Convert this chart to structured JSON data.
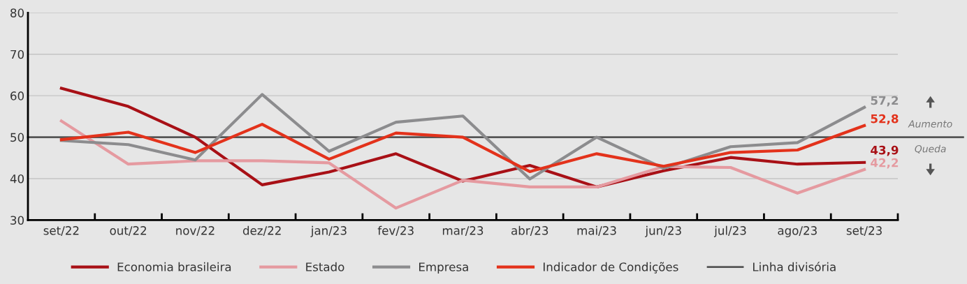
{
  "chart_data": {
    "type": "line",
    "categories": [
      "set/22",
      "out/22",
      "nov/22",
      "dez/22",
      "jan/23",
      "fev/23",
      "mar/23",
      "abr/23",
      "mai/23",
      "jun/23",
      "jul/23",
      "ago/23",
      "set/23"
    ],
    "series": [
      {
        "name": "Economia brasileira",
        "color": "#a81016",
        "values": [
          61.8,
          57.4,
          50.0,
          38.5,
          41.6,
          46.0,
          39.4,
          43.2,
          38.0,
          41.9,
          45.1,
          43.5,
          43.9
        ],
        "value_labels": [
          null,
          null,
          null,
          null,
          null,
          null,
          null,
          null,
          null,
          null,
          null,
          null,
          "43,9"
        ]
      },
      {
        "name": "Estado",
        "color": "#e59aa0",
        "values": [
          53.9,
          43.5,
          44.3,
          44.3,
          43.8,
          32.9,
          39.6,
          38.0,
          38.0,
          42.9,
          42.7,
          36.5,
          42.2
        ],
        "value_labels": [
          null,
          null,
          null,
          null,
          null,
          null,
          null,
          null,
          null,
          null,
          null,
          null,
          "42,2"
        ]
      },
      {
        "name": "Empresa",
        "color": "#8c8c8e",
        "values": [
          49.2,
          48.2,
          44.5,
          60.3,
          46.6,
          53.6,
          55.1,
          39.9,
          50.0,
          42.5,
          47.7,
          48.7,
          57.2
        ],
        "value_labels": [
          null,
          null,
          null,
          null,
          null,
          null,
          null,
          null,
          null,
          null,
          null,
          null,
          "57,2"
        ]
      },
      {
        "name": "Indicador de Condições",
        "color": "#e3321b",
        "values": [
          49.4,
          51.2,
          46.3,
          53.1,
          44.7,
          51.0,
          50.0,
          41.7,
          46.0,
          43.0,
          46.3,
          46.9,
          52.8
        ],
        "value_labels": [
          null,
          null,
          null,
          null,
          null,
          null,
          null,
          null,
          null,
          null,
          null,
          null,
          "52,8"
        ]
      }
    ],
    "ref_lines": [
      {
        "axis": "y",
        "value": 50,
        "label": "Linha divisória",
        "color": "#555555",
        "line_style": "solid"
      }
    ],
    "annotations": [
      "Aumento",
      "Queda"
    ],
    "ylim": [
      30,
      80
    ],
    "yticks": [
      30,
      40,
      50,
      60,
      70,
      80
    ],
    "grid": "y",
    "legend": "bottom",
    "marker": "none",
    "line_style": "solid"
  }
}
